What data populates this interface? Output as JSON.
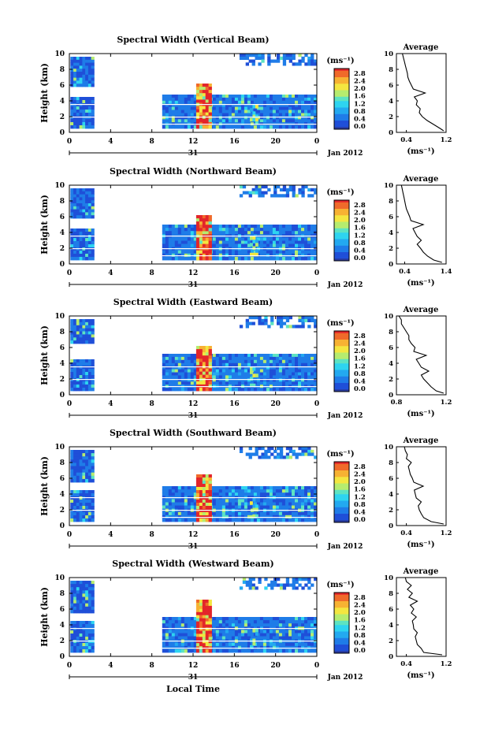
{
  "colors": {
    "scale": [
      "#283a9e",
      "#1f4fd8",
      "#1f7ce8",
      "#23a9f0",
      "#2ed4f0",
      "#5de3c2",
      "#b6ec6f",
      "#f4e640",
      "#f7b233",
      "#f06a2a",
      "#e3252a"
    ],
    "white_band": "#ffffff",
    "axis": "#000000"
  },
  "date_label": "Jan 2012",
  "day_label": "31",
  "xaxis_title": "Local Time",
  "colorbar_unit_label": "(ms⁻¹)",
  "panels": [
    {
      "title": "Spectral Width (Vertical Beam)",
      "ylabel": "Height (km)",
      "colorbar_ticks": [
        "2.8",
        "2.4",
        "2.0",
        "1.6",
        "1.2",
        "0.8",
        "0.4",
        "0.0"
      ],
      "avg_title": "Average",
      "avg_xlabel": "(ms⁻¹)",
      "avg_xticks": [
        "0.4",
        "1.2"
      ]
    },
    {
      "title": "Spectral Width (Northward Beam)",
      "ylabel": "Height (km)",
      "colorbar_ticks": [
        "2.8",
        "2.4",
        "2.0",
        "1.6",
        "1.2",
        "0.8",
        "0.4",
        "0.0"
      ],
      "avg_title": "Average",
      "avg_xlabel": "(ms⁻¹)",
      "avg_xticks": [
        "0.4",
        "1.4"
      ]
    },
    {
      "title": "Spectral Width (Eastward Beam)",
      "ylabel": "Height (km)",
      "colorbar_ticks": [
        "2.8",
        "2.4",
        "2.0",
        "1.6",
        "1.2",
        "0.8",
        "0.4",
        "0.0"
      ],
      "avg_title": "Average",
      "avg_xlabel": "(ms⁻¹)",
      "avg_xticks": [
        "0.8",
        "1.2"
      ]
    },
    {
      "title": "Spectral Width (Southward Beam)",
      "ylabel": "Height (km)",
      "colorbar_ticks": [
        "2.8",
        "2.4",
        "2.0",
        "1.6",
        "1.2",
        "0.8",
        "0.4",
        "0.0"
      ],
      "avg_title": "Average",
      "avg_xlabel": "(ms⁻¹)",
      "avg_xticks": [
        "0.4",
        "1.2"
      ]
    },
    {
      "title": "Spectral Width (Westward Beam)",
      "ylabel": "Height (km)",
      "colorbar_ticks": [
        "2.8",
        "2.4",
        "2.0",
        "1.6",
        "1.2",
        "0.8",
        "0.4",
        "0.0"
      ],
      "avg_title": "Average",
      "avg_xlabel": "(ms⁻¹)",
      "avg_xticks": [
        "0.4",
        "1.2"
      ]
    }
  ],
  "chart_data": [
    {
      "type": "heatmap",
      "title": "Spectral Width (Vertical Beam)",
      "xlabel": "",
      "ylabel": "Height (km)",
      "xlim": [
        0,
        24
      ],
      "ylim": [
        0,
        10
      ],
      "x_ticks": [
        "0",
        "4",
        "8",
        "12",
        "16",
        "20",
        "0"
      ],
      "y_ticks": [
        "0",
        "2",
        "4",
        "6",
        "8",
        "10"
      ],
      "colorbar_range": [
        0,
        2.8
      ],
      "colorbar_unit": "(ms⁻¹)",
      "regions": [
        {
          "t": [
            0.1,
            2.4
          ],
          "h": [
            0.5,
            4.5
          ],
          "sw": 0.4
        },
        {
          "t": [
            0.1,
            2.4
          ],
          "h": [
            5.8,
            9.6
          ],
          "sw": 0.4
        },
        {
          "t": [
            9,
            24
          ],
          "h": [
            0.5,
            4.8
          ],
          "sw": 0.5
        },
        {
          "t": [
            12.3,
            13.8
          ],
          "h": [
            0.5,
            6.2
          ],
          "sw": 2.6
        },
        {
          "t": [
            17.5,
            18.3
          ],
          "h": [
            1,
            3.5
          ],
          "sw": 1.4
        },
        {
          "t": [
            16.5,
            24
          ],
          "h": [
            8.5,
            10
          ],
          "sw": 0.5
        }
      ]
    },
    {
      "type": "line",
      "title": "Average",
      "xlabel": "(ms⁻¹)",
      "ylabel": "",
      "xlim": [
        0.2,
        1.2
      ],
      "ylim": [
        0,
        10
      ],
      "x": [
        1.15,
        1.08,
        0.95,
        0.82,
        0.72,
        0.66,
        0.68,
        0.6,
        0.62,
        0.56,
        0.78,
        0.54,
        0.5,
        0.46,
        0.43,
        0.42,
        0.4,
        0.38,
        0.36,
        0.34,
        0.32
      ],
      "y": [
        0.2,
        0.5,
        1,
        1.5,
        2,
        2.5,
        3,
        3.5,
        4,
        4.5,
        5,
        5.5,
        6,
        6.5,
        7,
        7.5,
        8,
        8.5,
        9,
        9.5,
        10
      ]
    },
    {
      "type": "heatmap",
      "title": "Spectral Width (Northward Beam)",
      "xlabel": "",
      "ylabel": "Height (km)",
      "xlim": [
        0,
        24
      ],
      "ylim": [
        0,
        10
      ],
      "x_ticks": [
        "0",
        "4",
        "8",
        "12",
        "16",
        "20",
        "0"
      ],
      "y_ticks": [
        "0",
        "2",
        "4",
        "6",
        "8",
        "10"
      ],
      "colorbar_range": [
        0,
        2.8
      ],
      "colorbar_unit": "(ms⁻¹)",
      "regions": [
        {
          "t": [
            0.1,
            2.4
          ],
          "h": [
            0.5,
            4.5
          ],
          "sw": 0.4
        },
        {
          "t": [
            0.1,
            2.4
          ],
          "h": [
            5.8,
            9.6
          ],
          "sw": 0.4
        },
        {
          "t": [
            9,
            24
          ],
          "h": [
            0.5,
            5
          ],
          "sw": 0.5
        },
        {
          "t": [
            12.3,
            13.8
          ],
          "h": [
            0.5,
            6.2
          ],
          "sw": 2.6
        },
        {
          "t": [
            17.5,
            18.3
          ],
          "h": [
            1,
            3.5
          ],
          "sw": 1.4
        },
        {
          "t": [
            16.5,
            24
          ],
          "h": [
            8.5,
            10
          ],
          "sw": 0.5
        }
      ]
    },
    {
      "type": "line",
      "title": "Average",
      "xlabel": "(ms⁻¹)",
      "ylabel": "",
      "xlim": [
        0.2,
        1.4
      ],
      "ylim": [
        0,
        10
      ],
      "x": [
        1.3,
        1.1,
        0.95,
        0.85,
        0.78,
        0.7,
        0.8,
        0.7,
        0.65,
        0.6,
        0.85,
        0.55,
        0.52,
        0.48,
        0.44,
        0.42,
        0.4,
        0.38,
        0.36,
        0.34,
        0.32
      ],
      "y": [
        0.2,
        0.5,
        1,
        1.5,
        2,
        2.5,
        3,
        3.5,
        4,
        4.5,
        5,
        5.5,
        6,
        6.5,
        7,
        7.5,
        8,
        8.5,
        9,
        9.5,
        10
      ]
    },
    {
      "type": "heatmap",
      "title": "Spectral Width (Eastward Beam)",
      "xlabel": "",
      "ylabel": "Height (km)",
      "xlim": [
        0,
        24
      ],
      "ylim": [
        0,
        10
      ],
      "x_ticks": [
        "0",
        "4",
        "8",
        "12",
        "16",
        "20",
        "0"
      ],
      "y_ticks": [
        "0",
        "2",
        "4",
        "6",
        "8",
        "10"
      ],
      "colorbar_range": [
        0,
        2.8
      ],
      "colorbar_unit": "(ms⁻¹)",
      "regions": [
        {
          "t": [
            0.1,
            2.4
          ],
          "h": [
            0.5,
            4.5
          ],
          "sw": 0.4
        },
        {
          "t": [
            0.1,
            2.4
          ],
          "h": [
            6.5,
            9.6
          ],
          "sw": 0.4
        },
        {
          "t": [
            9,
            24
          ],
          "h": [
            0.5,
            5.2
          ],
          "sw": 0.5
        },
        {
          "t": [
            12.3,
            13.8
          ],
          "h": [
            0.5,
            6.2
          ],
          "sw": 2.6
        },
        {
          "t": [
            17.5,
            18.3
          ],
          "h": [
            1,
            3.5
          ],
          "sw": 1.4
        },
        {
          "t": [
            16.5,
            24
          ],
          "h": [
            8.5,
            10
          ],
          "sw": 0.5
        }
      ]
    },
    {
      "type": "line",
      "title": "Average",
      "xlabel": "(ms⁻¹)",
      "ylabel": "",
      "xlim": [
        0.8,
        1.2
      ],
      "ylim": [
        0,
        10
      ],
      "x": [
        1.18,
        1.12,
        1.08,
        1.05,
        1.02,
        1.0,
        1.06,
        1.0,
        0.98,
        0.96,
        1.04,
        0.94,
        0.95,
        0.92,
        0.9,
        0.9,
        0.88,
        0.86,
        0.84,
        0.84,
        0.82
      ],
      "y": [
        0.2,
        0.5,
        1,
        1.5,
        2,
        2.5,
        3,
        3.5,
        4,
        4.5,
        5,
        5.5,
        6,
        6.5,
        7,
        7.5,
        8,
        8.5,
        9,
        9.5,
        10
      ]
    },
    {
      "type": "heatmap",
      "title": "Spectral Width (Southward Beam)",
      "xlabel": "",
      "ylabel": "Height (km)",
      "xlim": [
        0,
        24
      ],
      "ylim": [
        0,
        10
      ],
      "x_ticks": [
        "0",
        "4",
        "8",
        "12",
        "16",
        "20",
        "0"
      ],
      "y_ticks": [
        "0",
        "2",
        "4",
        "6",
        "8",
        "10"
      ],
      "colorbar_range": [
        0,
        2.8
      ],
      "colorbar_unit": "(ms⁻¹)",
      "regions": [
        {
          "t": [
            0.1,
            2.4
          ],
          "h": [
            0.5,
            4.5
          ],
          "sw": 0.4
        },
        {
          "t": [
            0.1,
            2.4
          ],
          "h": [
            5.5,
            9.6
          ],
          "sw": 0.4
        },
        {
          "t": [
            9,
            24
          ],
          "h": [
            0.5,
            5
          ],
          "sw": 0.5
        },
        {
          "t": [
            12.3,
            13.8
          ],
          "h": [
            0.5,
            6.5
          ],
          "sw": 2.6
        },
        {
          "t": [
            17.5,
            18.3
          ],
          "h": [
            1,
            3.5
          ],
          "sw": 1.4
        },
        {
          "t": [
            16.5,
            24
          ],
          "h": [
            8.5,
            10
          ],
          "sw": 0.5
        }
      ]
    },
    {
      "type": "line",
      "title": "Average",
      "xlabel": "(ms⁻¹)",
      "ylabel": "",
      "xlim": [
        0.2,
        1.2
      ],
      "ylim": [
        0,
        10
      ],
      "x": [
        1.15,
        0.9,
        0.75,
        0.7,
        0.66,
        0.64,
        0.7,
        0.6,
        0.58,
        0.56,
        0.74,
        0.55,
        0.52,
        0.48,
        0.46,
        0.44,
        0.5,
        0.4,
        0.42,
        0.38,
        0.36
      ],
      "y": [
        0.2,
        0.5,
        1,
        1.5,
        2,
        2.5,
        3,
        3.5,
        4,
        4.5,
        5,
        5.5,
        6,
        6.5,
        7,
        7.5,
        8,
        8.5,
        9,
        9.5,
        10
      ]
    },
    {
      "type": "heatmap",
      "title": "Spectral Width (Westward Beam)",
      "xlabel": "Local Time",
      "ylabel": "Height (km)",
      "xlim": [
        0,
        24
      ],
      "ylim": [
        0,
        10
      ],
      "x_ticks": [
        "0",
        "4",
        "8",
        "12",
        "16",
        "20",
        "0"
      ],
      "y_ticks": [
        "0",
        "2",
        "4",
        "6",
        "8",
        "10"
      ],
      "colorbar_range": [
        0,
        2.8
      ],
      "colorbar_unit": "(ms⁻¹)",
      "regions": [
        {
          "t": [
            0.1,
            2.4
          ],
          "h": [
            0.5,
            4.5
          ],
          "sw": 0.4
        },
        {
          "t": [
            0.1,
            2.4
          ],
          "h": [
            5.5,
            9.6
          ],
          "sw": 0.4
        },
        {
          "t": [
            9,
            24
          ],
          "h": [
            0.5,
            5
          ],
          "sw": 0.5
        },
        {
          "t": [
            12.3,
            13.8
          ],
          "h": [
            0.5,
            7.2
          ],
          "sw": 2.6
        },
        {
          "t": [
            17.5,
            18.3
          ],
          "h": [
            1,
            3.5
          ],
          "sw": 1.4
        },
        {
          "t": [
            16.5,
            24
          ],
          "h": [
            8.5,
            10
          ],
          "sw": 0.5
        }
      ]
    },
    {
      "type": "line",
      "title": "Average",
      "xlabel": "(ms⁻¹)",
      "ylabel": "",
      "xlim": [
        0.2,
        1.2
      ],
      "ylim": [
        0,
        10
      ],
      "x": [
        1.12,
        0.75,
        0.7,
        0.62,
        0.6,
        0.58,
        0.62,
        0.55,
        0.54,
        0.52,
        0.6,
        0.5,
        0.55,
        0.48,
        0.62,
        0.45,
        0.52,
        0.42,
        0.5,
        0.4,
        0.38
      ],
      "y": [
        0.2,
        0.5,
        1,
        1.5,
        2,
        2.5,
        3,
        3.5,
        4,
        4.5,
        5,
        5.5,
        6,
        6.5,
        7,
        7.5,
        8,
        8.5,
        9,
        9.5,
        10
      ]
    }
  ]
}
